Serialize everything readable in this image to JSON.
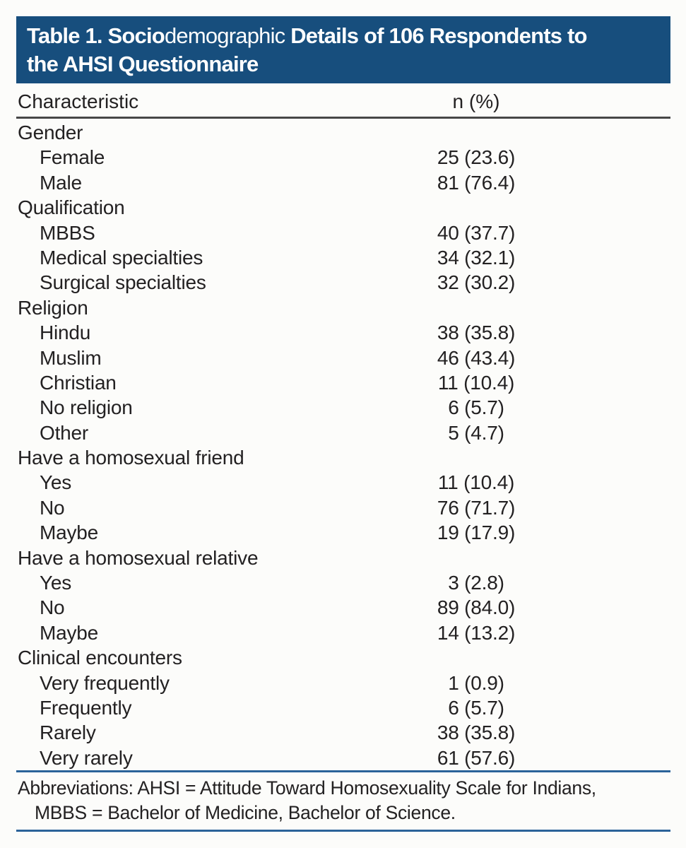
{
  "colors": {
    "title_band_bg": "#174E7D",
    "title_text": "#FFFFFF",
    "header_rule": "#474747",
    "footer_rule_blue": "#2B6399",
    "body_text": "#232122",
    "page_bg": "#FCFCFA"
  },
  "header": {
    "line1_part1": "Table 1. Socio",
    "line1_part2": "demographic",
    "line1_part3": " Details of 106 Respondents to",
    "line2": "the AHSI Questionnaire"
  },
  "table": {
    "columns": [
      "Characteristic",
      "n (%)"
    ],
    "rows": [
      {
        "label": "Gender",
        "value": "",
        "indent": false
      },
      {
        "label": "Female",
        "value": "25 (23.6)",
        "indent": true
      },
      {
        "label": "Male",
        "value": "81 (76.4)",
        "indent": true
      },
      {
        "label": "Qualification",
        "value": "",
        "indent": false
      },
      {
        "label": "MBBS",
        "value": "40 (37.7)",
        "indent": true
      },
      {
        "label": "Medical specialties",
        "value": "34 (32.1)",
        "indent": true
      },
      {
        "label": "Surgical specialties",
        "value": "32 (30.2)",
        "indent": true
      },
      {
        "label": "Religion",
        "value": "",
        "indent": false
      },
      {
        "label": "Hindu",
        "value": "38 (35.8)",
        "indent": true
      },
      {
        "label": "Muslim",
        "value": "46 (43.4)",
        "indent": true
      },
      {
        "label": "Christian",
        "value": "11 (10.4)",
        "indent": true
      },
      {
        "label": "No religion",
        "value": "6 (5.7)",
        "indent": true
      },
      {
        "label": "Other",
        "value": "5 (4.7)",
        "indent": true
      },
      {
        "label": "Have a homosexual friend",
        "value": "",
        "indent": false
      },
      {
        "label": "Yes",
        "value": "11 (10.4)",
        "indent": true
      },
      {
        "label": "No",
        "value": "76 (71.7)",
        "indent": true
      },
      {
        "label": "Maybe",
        "value": "19 (17.9)",
        "indent": true
      },
      {
        "label": "Have a homosexual relative",
        "value": "",
        "indent": false
      },
      {
        "label": "Yes",
        "value": "3 (2.8)",
        "indent": true
      },
      {
        "label": "No",
        "value": "89 (84.0)",
        "indent": true
      },
      {
        "label": "Maybe",
        "value": "14 (13.2)",
        "indent": true
      },
      {
        "label": "Clinical encounters",
        "value": "",
        "indent": false
      },
      {
        "label": "Very frequently",
        "value": "1 (0.9)",
        "indent": true
      },
      {
        "label": "Frequently",
        "value": "6 (5.7)",
        "indent": true
      },
      {
        "label": "Rarely",
        "value": "38 (35.8)",
        "indent": true
      },
      {
        "label": "Very rarely",
        "value": "61 (57.6)",
        "indent": true
      }
    ]
  },
  "footer": {
    "line1": "Abbreviations: AHSI = Attitude Toward Homosexuality Scale for Indians,",
    "line2": "MBBS = Bachelor of Medicine, Bachelor of Science."
  }
}
